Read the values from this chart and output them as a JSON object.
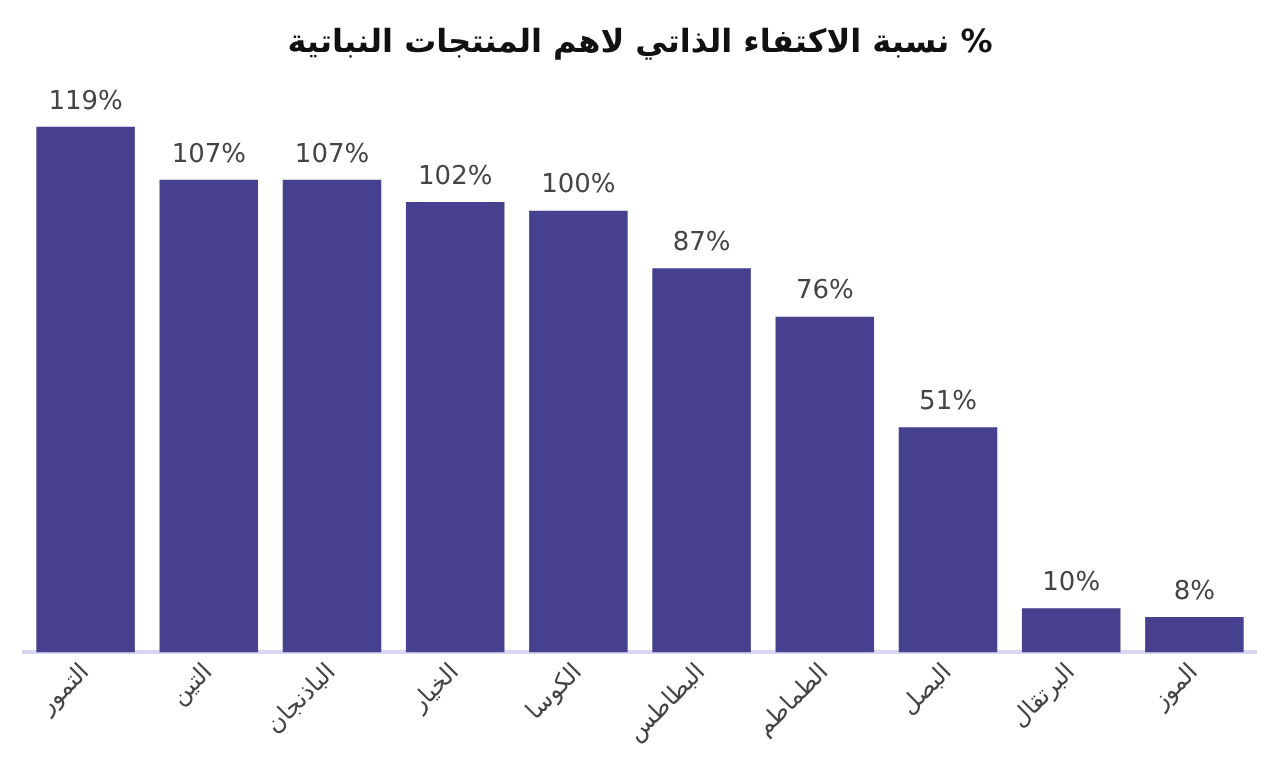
{
  "chart_data": {
    "type": "bar",
    "title": "نسبة الاكتفاء الذاتي لاهم المنتجات النباتية %",
    "categories": [
      "التمور",
      "التين",
      "الباذنجان",
      "الخيار",
      "الكوسا",
      "البطاطس",
      "الطماطم",
      "البصل",
      "البرتقال",
      "الموز"
    ],
    "values": [
      119,
      107,
      107,
      102,
      100,
      87,
      76,
      51,
      10,
      8
    ],
    "value_labels": [
      "119%",
      "107%",
      "107%",
      "102%",
      "100%",
      "87%",
      "76%",
      "51%",
      "10%",
      "8%"
    ],
    "color": "#46408f",
    "grid": false,
    "legend": false
  }
}
